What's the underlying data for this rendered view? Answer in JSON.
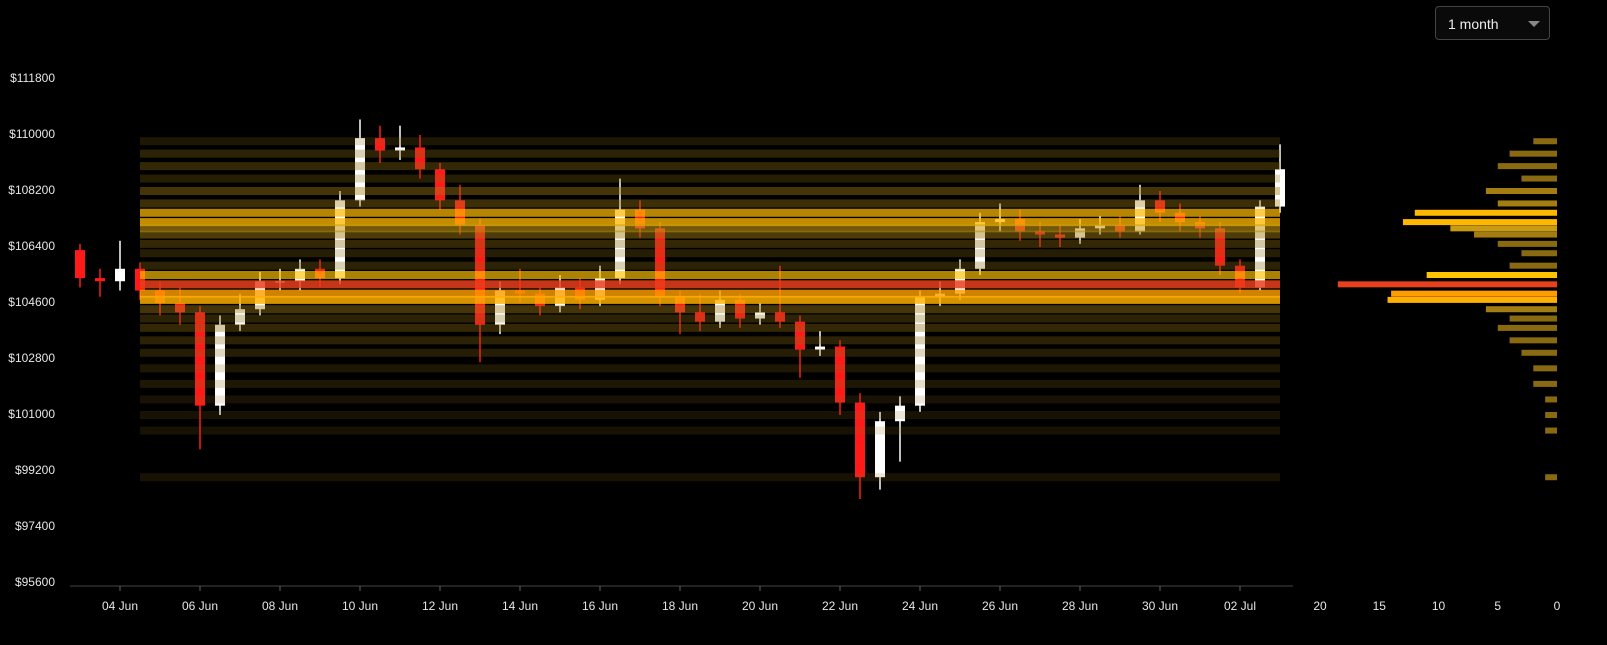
{
  "chart_data": [
    {
      "type": "candlestick",
      "up_color": "#ffffff",
      "down_color": "#ff1a1a",
      "categories": [
        null,
        null,
        "04 Jun",
        null,
        null,
        null,
        "06 Jun",
        null,
        null,
        null,
        "08 Jun",
        null,
        null,
        null,
        "10 Jun",
        null,
        null,
        null,
        "12 Jun",
        null,
        null,
        null,
        "14 Jun",
        null,
        null,
        null,
        "16 Jun",
        null,
        null,
        null,
        "18 Jun",
        null,
        null,
        null,
        "20 Jun",
        null,
        null,
        null,
        "22 Jun",
        null,
        null,
        null,
        "24 Jun",
        null,
        null,
        null,
        "26 Jun",
        null,
        null,
        null,
        "28 Jun",
        null,
        null,
        null,
        "30 Jun",
        null,
        null,
        null,
        "02 Jul",
        null,
        null
      ],
      "open": [
        106300,
        105400,
        105300,
        105700,
        105000,
        104600,
        104300,
        101300,
        103900,
        104400,
        105300,
        105300,
        105700,
        105400,
        107900,
        109900,
        109500,
        109600,
        108900,
        107900,
        107100,
        103900,
        105000,
        104900,
        104500,
        105100,
        104700,
        105400,
        107600,
        107000,
        104800,
        104300,
        104000,
        104700,
        104100,
        104300,
        104000,
        103100,
        103200,
        101400,
        99000,
        100800,
        101300,
        104800,
        104900,
        105700,
        107200,
        107300,
        106900,
        106800,
        106700,
        107000,
        107100,
        106900,
        107900,
        107500,
        107200,
        107000,
        105800,
        105100,
        107700
      ],
      "high": [
        106500,
        105700,
        106600,
        105900,
        105300,
        105100,
        104500,
        104200,
        104900,
        105600,
        105700,
        106000,
        106000,
        108200,
        110500,
        110300,
        110300,
        110000,
        109100,
        108400,
        107300,
        105300,
        105700,
        105100,
        105500,
        105400,
        105800,
        108600,
        107900,
        107200,
        105000,
        104900,
        105000,
        104900,
        104600,
        105800,
        104200,
        103700,
        103400,
        101700,
        101100,
        101600,
        105000,
        105300,
        106000,
        107500,
        107800,
        107600,
        107200,
        107100,
        107300,
        107400,
        107400,
        108400,
        108200,
        107800,
        107400,
        107200,
        106000,
        107900,
        109700
      ],
      "low": [
        105100,
        104800,
        105000,
        104700,
        104200,
        103900,
        99900,
        101000,
        103700,
        104200,
        105000,
        105000,
        105100,
        105200,
        107700,
        109100,
        109200,
        108600,
        107600,
        106800,
        102700,
        103600,
        104600,
        104200,
        104300,
        104400,
        104500,
        105200,
        106700,
        104500,
        103600,
        103700,
        103800,
        103800,
        103900,
        103800,
        102200,
        102900,
        101000,
        98300,
        98600,
        99500,
        101100,
        104500,
        104700,
        105500,
        106900,
        106600,
        106400,
        106400,
        106500,
        106800,
        106700,
        106800,
        107200,
        106900,
        106700,
        105500,
        104900,
        105000,
        107500
      ],
      "close": [
        105400,
        105300,
        105700,
        105000,
        104600,
        104300,
        101300,
        103900,
        104400,
        105300,
        105300,
        105700,
        105400,
        107900,
        109900,
        109500,
        109600,
        108900,
        107900,
        107100,
        103900,
        105000,
        104900,
        104500,
        105100,
        104700,
        105400,
        107600,
        107000,
        104800,
        104300,
        104000,
        104700,
        104100,
        104300,
        104000,
        103100,
        103200,
        101400,
        99000,
        100800,
        101300,
        104800,
        104900,
        105700,
        107200,
        107300,
        106900,
        106800,
        106700,
        107000,
        107100,
        106900,
        107900,
        107500,
        107200,
        107000,
        105800,
        105100,
        107700,
        108900
      ],
      "ylim": [
        95600,
        111800
      ],
      "yticks": [
        {
          "value": 95600,
          "label": "$95600"
        },
        {
          "value": 97400,
          "label": "$97400"
        },
        {
          "value": 99200,
          "label": "$99200"
        },
        {
          "value": 101000,
          "label": "$101000"
        },
        {
          "value": 102800,
          "label": "$102800"
        },
        {
          "value": 104600,
          "label": "$104600"
        },
        {
          "value": 106400,
          "label": "$106400"
        },
        {
          "value": 108200,
          "label": "$108200"
        },
        {
          "value": 110000,
          "label": "$110000"
        },
        {
          "value": 111800,
          "label": "$111800"
        }
      ]
    },
    {
      "type": "depth",
      "y": [
        109800,
        109400,
        109000,
        108600,
        108200,
        107800,
        107500,
        107200,
        107000,
        106800,
        106500,
        106200,
        105800,
        105500,
        105200,
        104900,
        104700,
        104400,
        104100,
        103800,
        103400,
        103000,
        102500,
        102000,
        101500,
        101000,
        100500,
        99000
      ],
      "values": [
        2,
        4,
        5,
        3,
        6,
        5,
        12,
        13,
        9,
        7,
        5,
        3,
        4,
        11,
        18.5,
        14,
        14.3,
        6,
        4,
        5,
        4,
        3,
        2,
        2,
        1,
        1,
        1,
        1
      ],
      "colors": [
        "#8a6a10",
        "#8a6a10",
        "#8a6a10",
        "#8a6a10",
        "#a37d12",
        "#a37d12",
        "#ffb800",
        "#ffb800",
        "#c99a14",
        "#a37d12",
        "#8a6a10",
        "#8a6a10",
        "#8a6a10",
        "#ffc400",
        "#e8401c",
        "#ff9d00",
        "#ffb000",
        "#a37d12",
        "#8a6a10",
        "#8a6a10",
        "#8a6a10",
        "#8a6a10",
        "#8a6a10",
        "#8a6a10",
        "#8a6a10",
        "#8a6a10",
        "#8a6a10",
        "#8a6a10"
      ],
      "xlim": [
        20,
        0
      ],
      "xticks": [
        20,
        15,
        10,
        5,
        0
      ]
    }
  ],
  "controls": {
    "range": "1 month"
  }
}
